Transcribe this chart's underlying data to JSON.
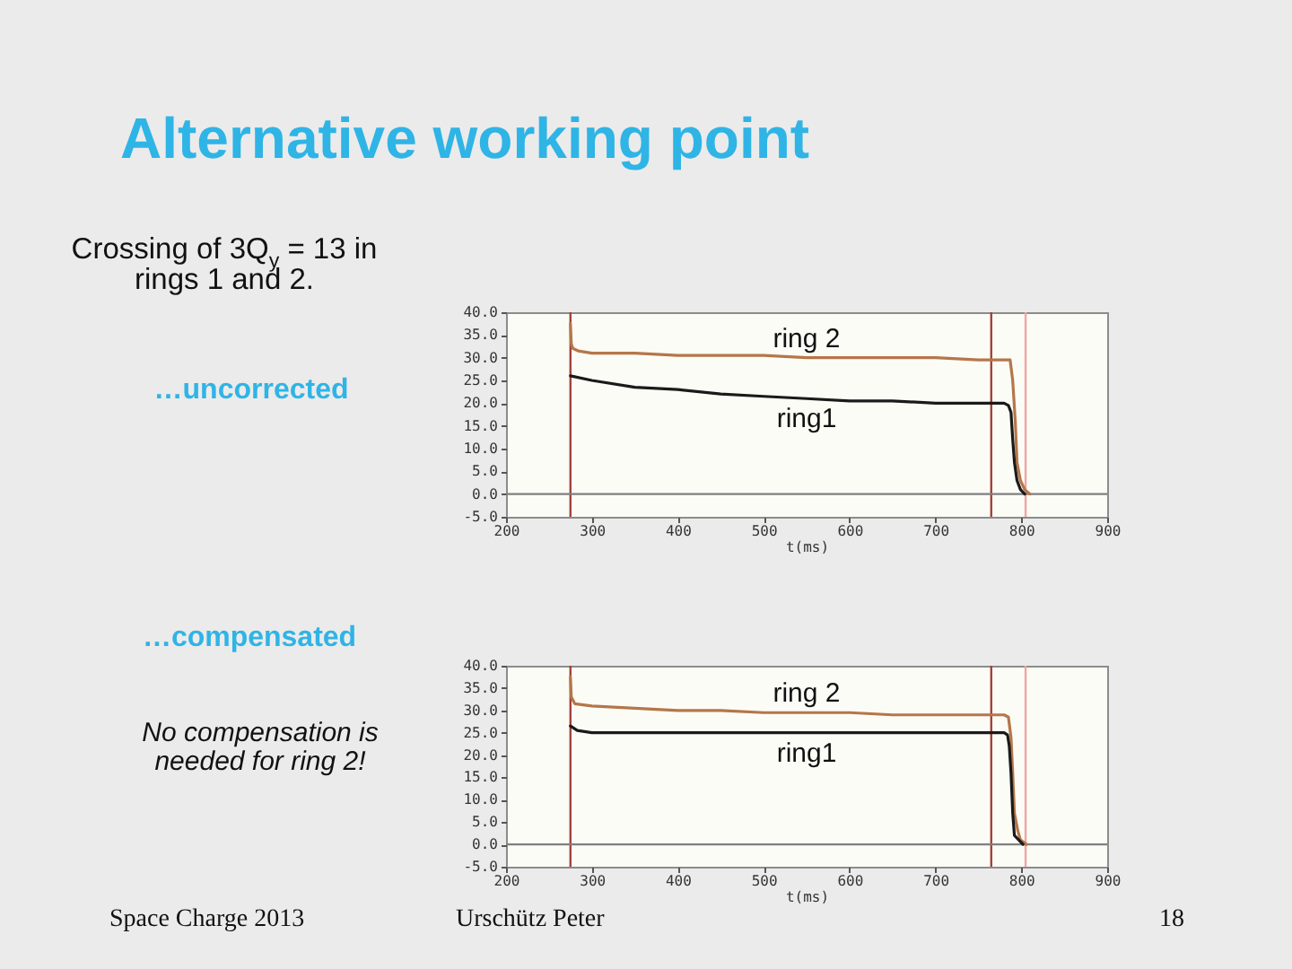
{
  "chart_data": [
    {
      "type": "other",
      "title": "Alternative working point",
      "annotations": [
        "Crossing of 3Q$_{y}$ = 13 in rings 1 and 2.",
        "Space Charge 2013",
        "Urschütz Peter",
        "18"
      ]
    },
    {
      "type": "line",
      "xlabel": "t(ms)",
      "annotations": [
        "…uncorrected"
      ],
      "xlim": [
        200,
        900
      ],
      "xticks": [
        200,
        300,
        400,
        500,
        600,
        700,
        800,
        900
      ],
      "ylim": [
        -5,
        40
      ],
      "yticks": [
        {
          "value": -5,
          "label": "-5.0"
        },
        {
          "value": 0,
          "label": "0.0"
        },
        {
          "value": 5,
          "label": "5.0"
        },
        {
          "value": 10,
          "label": "10.0"
        },
        {
          "value": 15,
          "label": "15.0"
        },
        {
          "value": 20,
          "label": "20.0"
        },
        {
          "value": 25,
          "label": "25.0"
        },
        {
          "value": 30,
          "label": "30.0"
        },
        {
          "value": 35,
          "label": "35.0"
        },
        {
          "value": 40,
          "label": "40.0"
        }
      ],
      "ref_lines": [
        {
          "axis": "x",
          "value": 275,
          "color": "#a0443c"
        },
        {
          "axis": "x",
          "value": 765,
          "color": "#a0443c"
        },
        {
          "axis": "x",
          "value": 805,
          "color": "#f2a4a4"
        },
        {
          "axis": "y",
          "value": 0,
          "color": "#808080"
        }
      ],
      "series": [
        {
          "name": "ring 2",
          "color": "#b5764a",
          "x": [
            275,
            276,
            278,
            284,
            300,
            350,
            400,
            450,
            500,
            550,
            600,
            650,
            700,
            750,
            780,
            787,
            790,
            793,
            795,
            799,
            804,
            810
          ],
          "values": [
            37.5,
            33,
            32,
            31.5,
            31,
            31,
            30.5,
            30.5,
            30.5,
            30,
            30,
            30,
            30,
            29.5,
            29.5,
            29.5,
            25,
            16,
            7,
            3,
            1,
            0
          ]
        },
        {
          "name": "ring1",
          "color": "#1a1a1a",
          "x": [
            275,
            300,
            350,
            400,
            450,
            500,
            550,
            600,
            650,
            700,
            750,
            780,
            785,
            788,
            790,
            792,
            795,
            799,
            804
          ],
          "values": [
            26,
            25,
            23.5,
            23,
            22,
            21.5,
            21,
            20.5,
            20.5,
            20,
            20,
            20,
            19.5,
            18,
            12,
            7,
            3,
            1,
            0
          ]
        }
      ]
    },
    {
      "type": "line",
      "xlabel": "t(ms)",
      "annotations": [
        "…compensated",
        "No compensation is needed for ring 2!"
      ],
      "xlim": [
        200,
        900
      ],
      "xticks": [
        200,
        300,
        400,
        500,
        600,
        700,
        800,
        900
      ],
      "ylim": [
        -5,
        40
      ],
      "yticks": [
        {
          "value": -5,
          "label": "-5.0"
        },
        {
          "value": 0,
          "label": "0.0"
        },
        {
          "value": 5,
          "label": "5.0"
        },
        {
          "value": 10,
          "label": "10.0"
        },
        {
          "value": 15,
          "label": "15.0"
        },
        {
          "value": 20,
          "label": "20.0"
        },
        {
          "value": 25,
          "label": "25.0"
        },
        {
          "value": 30,
          "label": "30.0"
        },
        {
          "value": 35,
          "label": "35.0"
        },
        {
          "value": 40,
          "label": "40.0"
        }
      ],
      "ref_lines": [
        {
          "axis": "x",
          "value": 275,
          "color": "#a0443c"
        },
        {
          "axis": "x",
          "value": 765,
          "color": "#a0443c"
        },
        {
          "axis": "x",
          "value": 805,
          "color": "#f2a4a4"
        },
        {
          "axis": "y",
          "value": 0,
          "color": "#808080"
        }
      ],
      "series": [
        {
          "name": "ring 2",
          "color": "#b5764a",
          "x": [
            275,
            276,
            280,
            300,
            350,
            400,
            450,
            500,
            550,
            600,
            650,
            700,
            750,
            780,
            785,
            788,
            790,
            792,
            796,
            799,
            806
          ],
          "values": [
            37.5,
            33,
            31.5,
            31,
            30.5,
            30,
            30,
            29.5,
            29.5,
            29.5,
            29,
            29,
            29,
            29,
            28.5,
            24,
            16,
            7,
            3,
            1,
            0
          ]
        },
        {
          "name": "ring1",
          "color": "#1a1a1a",
          "x": [
            275,
            283,
            300,
            350,
            400,
            450,
            500,
            550,
            600,
            650,
            700,
            750,
            780,
            784,
            786,
            788,
            790,
            792,
            797,
            802
          ],
          "values": [
            26.5,
            25.5,
            25,
            25,
            25,
            25,
            25,
            25,
            25,
            25,
            25,
            25,
            25,
            24.5,
            22,
            16,
            7,
            2,
            1,
            0
          ]
        }
      ]
    }
  ]
}
